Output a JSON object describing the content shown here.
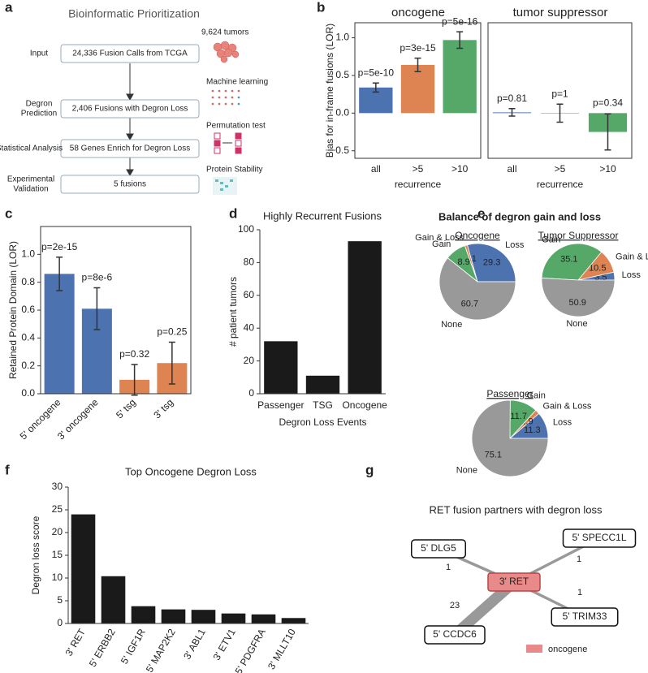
{
  "panel_labels": [
    "a",
    "b",
    "c",
    "d",
    "e",
    "f",
    "g"
  ],
  "workflow": {
    "title": "Bioinformatic Prioritization",
    "steps": [
      {
        "stage": [
          "Input"
        ],
        "box": "24,336 Fusion Calls from TCGA",
        "method": "9,624 tumors"
      },
      {
        "stage": [
          "Degron",
          "Prediction"
        ],
        "box": "2,406 Fusions with Degron Loss",
        "method": "Machine learning"
      },
      {
        "stage": [
          "Statistical Analysis"
        ],
        "box": "58 Genes Enrich for Degron Loss",
        "method": "Permutation test"
      },
      {
        "stage": [
          "Experimental",
          "Validation"
        ],
        "box": "5 fusions",
        "method": "Protein Stability"
      }
    ]
  },
  "panel_e_title": "Balance of degron gain and loss",
  "chart_data": [
    {
      "type": "bar",
      "title": "oncogene",
      "ylabel": "Bias for in-frame fusions (LOR)",
      "xlabel": "recurrence",
      "categories": [
        "all",
        ">5",
        ">10"
      ],
      "values": [
        0.34,
        0.64,
        0.97
      ],
      "errors": [
        0.06,
        0.09,
        0.11
      ],
      "annotations": [
        "p=5e-10",
        "p=3e-15",
        "p=5e-16"
      ],
      "colors": [
        "#4c72b0",
        "#dd8452",
        "#55a868"
      ],
      "ylim": [
        -0.6,
        1.2
      ],
      "yticks": [
        {
          "value": -0.5,
          "label": "−0.5"
        },
        {
          "value": 0,
          "label": "0.0"
        },
        0.5,
        {
          "value": 1,
          "label": "1.0"
        }
      ]
    },
    {
      "type": "bar",
      "title": "tumor suppressor",
      "xlabel": "recurrence",
      "categories": [
        "all",
        ">5",
        ">10"
      ],
      "values": [
        0.01,
        0,
        -0.25
      ],
      "errors": [
        0.05,
        0.12,
        0.24
      ],
      "annotations": [
        "p=0.81",
        "p=1",
        "p=0.34"
      ],
      "colors": [
        "#4c72b0",
        "#dd8452",
        "#55a868"
      ],
      "ylim": [
        -0.6,
        1.2
      ]
    },
    {
      "type": "bar",
      "ylabel": "Retained Protein Domain (LOR)",
      "categories": [
        "5' oncogene",
        "3' oncogene",
        "5' tsg",
        "3' tsg"
      ],
      "values": [
        0.86,
        0.61,
        0.1,
        0.22
      ],
      "errors": [
        0.12,
        0.15,
        0.11,
        0.15
      ],
      "annotations": [
        "p=2e-15",
        "p=8e-6",
        "p=0.32",
        "p=0.25"
      ],
      "colors": [
        "#4c72b0",
        "#4c72b0",
        "#dd8452",
        "#dd8452"
      ],
      "ylim": [
        0,
        1.2
      ],
      "yticks": [
        {
          "value": 0,
          "label": "0.0"
        },
        0.2,
        0.4,
        0.6,
        0.8,
        {
          "value": 1,
          "label": "1.0"
        }
      ]
    },
    {
      "type": "bar",
      "title": "Highly Recurrent Fusions",
      "ylabel": "# patient tumors",
      "xlabel": "Degron Loss Events",
      "categories": [
        "Passenger",
        "TSG",
        "Oncogene"
      ],
      "values": [
        32,
        11,
        93
      ],
      "color": "#1a1a1a",
      "ylim": [
        0,
        100
      ],
      "yticks": [
        0,
        20,
        40,
        60,
        80,
        100
      ]
    },
    {
      "type": "pie",
      "title": "Oncogene",
      "categories": [
        "Loss",
        "Gain & Loss",
        "Gain",
        "None"
      ],
      "values": [
        29.3,
        1.1,
        8.9,
        60.7
      ],
      "colors": [
        "#4c72b0",
        "#dd8452",
        "#55a868",
        "#999999"
      ]
    },
    {
      "type": "pie",
      "title": "Tumor Suppressor",
      "categories": [
        "Loss",
        "Gain & Loss",
        "Gain",
        "None"
      ],
      "values": [
        3.5,
        10.5,
        35.1,
        50.9
      ],
      "colors": [
        "#4c72b0",
        "#dd8452",
        "#55a868",
        "#999999"
      ]
    },
    {
      "type": "pie",
      "title": "Passenger",
      "categories": [
        "Loss",
        "Gain & Loss",
        "Gain",
        "None"
      ],
      "values": [
        11.3,
        1.9,
        11.7,
        75.1
      ],
      "colors": [
        "#4c72b0",
        "#dd8452",
        "#55a868",
        "#999999"
      ]
    },
    {
      "type": "bar",
      "title": "Top Oncogene Degron Loss",
      "ylabel": "Degron loss score",
      "categories": [
        "3' RET",
        "5' ERBB2",
        "5' IGF1R",
        "5' MAP2K2",
        "3' ABL1",
        "3' ETV1",
        "5' PDGFRA",
        "3' MLLT10"
      ],
      "values": [
        24,
        10.4,
        3.8,
        3.1,
        3.0,
        2.2,
        2.0,
        1.2
      ],
      "color": "#1a1a1a",
      "ylim": [
        0,
        30
      ],
      "yticks": [
        0,
        5,
        10,
        15,
        20,
        25,
        30
      ]
    }
  ],
  "network": {
    "title": "RET fusion partners with degron loss",
    "center": "3' RET",
    "center_color": "#e88a8a",
    "partners": [
      {
        "label": "5' DLG5",
        "weight": 1
      },
      {
        "label": "5' SPECC1L",
        "weight": 1
      },
      {
        "label": "5' TRIM33",
        "weight": 1
      },
      {
        "label": "5' CCDC6",
        "weight": 23
      }
    ],
    "legend": "oncogene"
  }
}
